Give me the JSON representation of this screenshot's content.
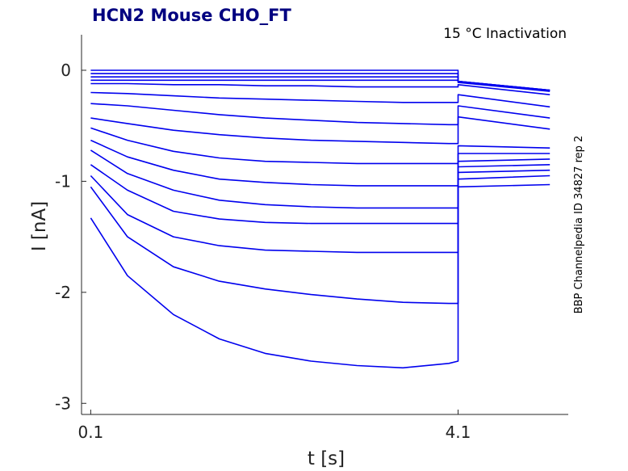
{
  "chart_data": {
    "type": "line",
    "title": "HCN2  Mouse  CHO_FT",
    "annotation": "15 °C  Inactivation",
    "side_label": "BBP Channelpedia ID 34827 rep 2",
    "xlabel": "t [s]",
    "ylabel": "I [nA]",
    "xlim": [
      0.0,
      5.3
    ],
    "ylim": [
      -3.1,
      0.32
    ],
    "xticks": [
      0.1,
      4.1
    ],
    "xtick_labels": [
      "0.1",
      "4.1"
    ],
    "yticks": [
      0,
      -1,
      -2,
      -3
    ],
    "ytick_labels": [
      "0",
      "-1",
      "-2",
      "-3"
    ],
    "grid": false,
    "line_color": "#0000ee",
    "series": [
      {
        "x": [
          0.1,
          0.5,
          1.0,
          1.5,
          2.0,
          2.5,
          3.0,
          3.5,
          4.0,
          4.1,
          4.1,
          5.1
        ],
        "y": [
          0.0,
          0.0,
          0.0,
          0.0,
          0.0,
          0.0,
          0.0,
          0.0,
          0.0,
          0.0,
          -0.1,
          -0.18
        ]
      },
      {
        "x": [
          0.1,
          0.5,
          1.0,
          1.5,
          2.0,
          2.5,
          3.0,
          3.5,
          4.0,
          4.1,
          4.1,
          5.1
        ],
        "y": [
          -0.03,
          -0.03,
          -0.03,
          -0.03,
          -0.03,
          -0.03,
          -0.03,
          -0.03,
          -0.03,
          -0.03,
          -0.1,
          -0.18
        ]
      },
      {
        "x": [
          0.1,
          0.5,
          1.0,
          1.5,
          2.0,
          2.5,
          3.0,
          3.5,
          4.0,
          4.1,
          4.1,
          5.1
        ],
        "y": [
          -0.06,
          -0.06,
          -0.06,
          -0.06,
          -0.06,
          -0.06,
          -0.06,
          -0.06,
          -0.06,
          -0.06,
          -0.1,
          -0.18
        ]
      },
      {
        "x": [
          0.1,
          0.5,
          1.0,
          1.5,
          2.0,
          2.5,
          3.0,
          3.5,
          4.0,
          4.1,
          4.1,
          5.1
        ],
        "y": [
          -0.09,
          -0.09,
          -0.09,
          -0.09,
          -0.09,
          -0.09,
          -0.09,
          -0.09,
          -0.09,
          -0.09,
          -0.11,
          -0.19
        ]
      },
      {
        "x": [
          0.1,
          0.5,
          1.0,
          1.5,
          2.0,
          2.5,
          3.0,
          3.5,
          4.0,
          4.1,
          4.1,
          5.1
        ],
        "y": [
          -0.12,
          -0.12,
          -0.13,
          -0.13,
          -0.14,
          -0.14,
          -0.15,
          -0.15,
          -0.15,
          -0.15,
          -0.13,
          -0.22
        ]
      },
      {
        "x": [
          0.1,
          0.5,
          1.0,
          1.5,
          2.0,
          2.5,
          3.0,
          3.5,
          4.0,
          4.1,
          4.1,
          5.1
        ],
        "y": [
          -0.2,
          -0.21,
          -0.23,
          -0.25,
          -0.26,
          -0.27,
          -0.28,
          -0.29,
          -0.29,
          -0.29,
          -0.22,
          -0.33
        ]
      },
      {
        "x": [
          0.1,
          0.5,
          1.0,
          1.5,
          2.0,
          2.5,
          3.0,
          3.5,
          4.0,
          4.1,
          4.1,
          5.1
        ],
        "y": [
          -0.3,
          -0.32,
          -0.36,
          -0.4,
          -0.43,
          -0.45,
          -0.47,
          -0.48,
          -0.49,
          -0.49,
          -0.32,
          -0.43
        ]
      },
      {
        "x": [
          0.1,
          0.5,
          1.0,
          1.5,
          2.0,
          2.5,
          3.0,
          3.5,
          4.0,
          4.1,
          4.1,
          5.1
        ],
        "y": [
          -0.43,
          -0.48,
          -0.54,
          -0.58,
          -0.61,
          -0.63,
          -0.64,
          -0.65,
          -0.66,
          -0.66,
          -0.42,
          -0.53
        ]
      },
      {
        "x": [
          0.1,
          0.5,
          1.0,
          1.5,
          2.0,
          2.5,
          3.0,
          3.5,
          4.0,
          4.1,
          4.1,
          5.1
        ],
        "y": [
          -0.52,
          -0.63,
          -0.73,
          -0.79,
          -0.82,
          -0.83,
          -0.84,
          -0.84,
          -0.84,
          -0.84,
          -0.68,
          -0.7
        ]
      },
      {
        "x": [
          0.1,
          0.5,
          1.0,
          1.5,
          2.0,
          2.5,
          3.0,
          3.5,
          4.0,
          4.1,
          4.1,
          5.1
        ],
        "y": [
          -0.63,
          -0.78,
          -0.9,
          -0.98,
          -1.01,
          -1.03,
          -1.04,
          -1.04,
          -1.04,
          -1.04,
          -0.75,
          -0.75
        ]
      },
      {
        "x": [
          0.1,
          0.5,
          1.0,
          1.5,
          2.0,
          2.5,
          3.0,
          3.5,
          4.0,
          4.1,
          4.1,
          5.1
        ],
        "y": [
          -0.72,
          -0.93,
          -1.08,
          -1.17,
          -1.21,
          -1.23,
          -1.24,
          -1.24,
          -1.24,
          -1.24,
          -0.82,
          -0.8
        ]
      },
      {
        "x": [
          0.1,
          0.5,
          1.0,
          1.5,
          2.0,
          2.5,
          3.0,
          3.5,
          4.0,
          4.1,
          4.1,
          5.1
        ],
        "y": [
          -0.85,
          -1.08,
          -1.27,
          -1.34,
          -1.37,
          -1.38,
          -1.38,
          -1.38,
          -1.38,
          -1.38,
          -0.87,
          -0.85
        ]
      },
      {
        "x": [
          0.1,
          0.5,
          1.0,
          1.5,
          2.0,
          2.5,
          3.0,
          3.5,
          4.0,
          4.1,
          4.1,
          5.1
        ],
        "y": [
          -0.95,
          -1.3,
          -1.5,
          -1.58,
          -1.62,
          -1.63,
          -1.64,
          -1.64,
          -1.64,
          -1.64,
          -0.92,
          -0.9
        ]
      },
      {
        "x": [
          0.1,
          0.5,
          1.0,
          1.5,
          2.0,
          2.5,
          3.0,
          3.5,
          4.0,
          4.1,
          4.1,
          5.1
        ],
        "y": [
          -1.05,
          -1.5,
          -1.77,
          -1.9,
          -1.97,
          -2.02,
          -2.06,
          -2.09,
          -2.1,
          -2.1,
          -0.98,
          -0.95
        ]
      },
      {
        "x": [
          0.1,
          0.5,
          1.0,
          1.5,
          2.0,
          2.5,
          3.0,
          3.5,
          4.0,
          4.1,
          4.1,
          5.1
        ],
        "y": [
          -1.33,
          -1.85,
          -2.2,
          -2.42,
          -2.55,
          -2.62,
          -2.66,
          -2.68,
          -2.64,
          -2.62,
          -1.05,
          -1.03
        ]
      }
    ]
  }
}
